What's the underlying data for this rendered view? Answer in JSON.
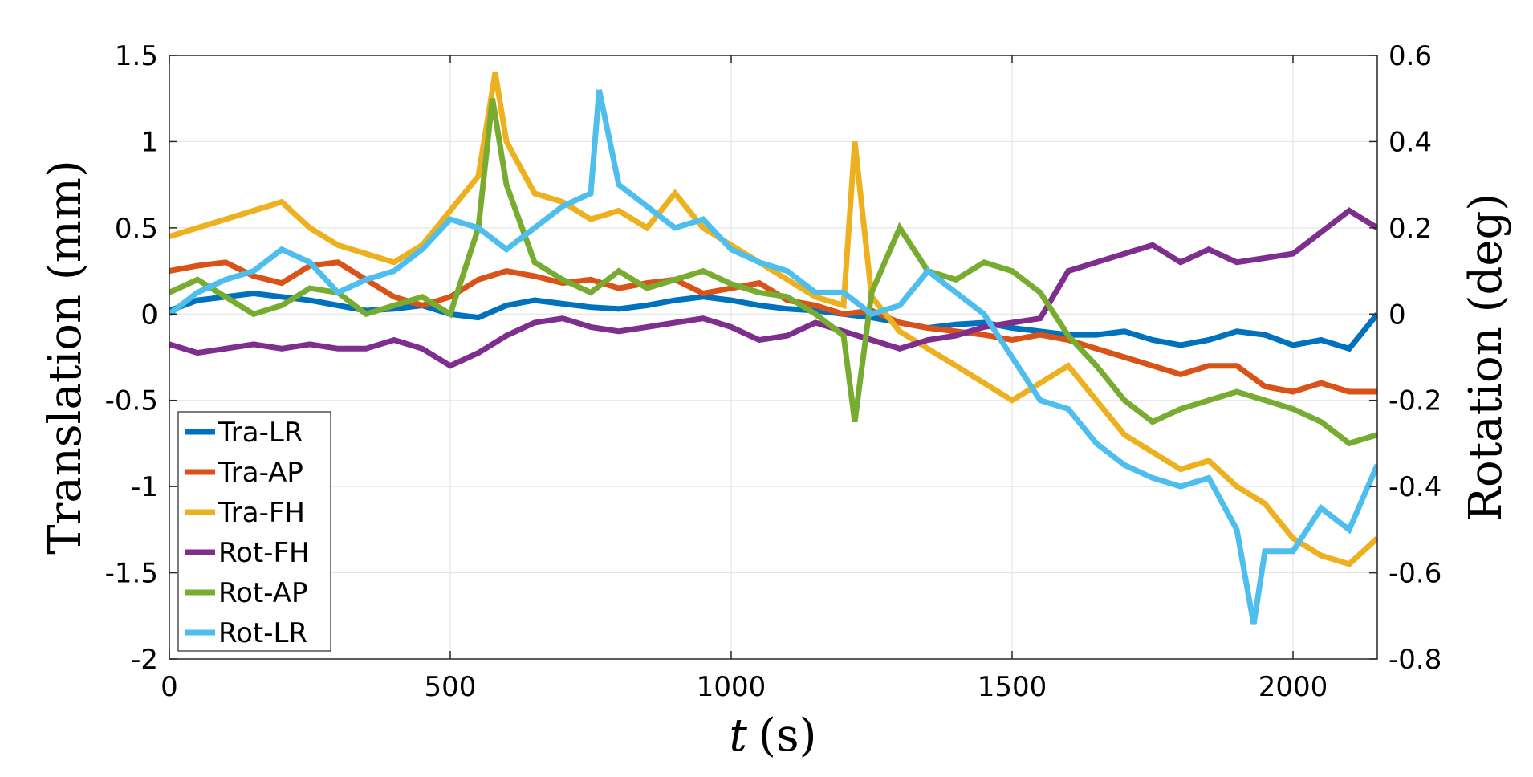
{
  "chart_data": {
    "type": "line",
    "title": "",
    "xlabel_var": "t",
    "xlabel_unit": "(s)",
    "ylabel_left": "Translation (mm)",
    "ylabel_right": "Rotation (deg)",
    "xlim": [
      0,
      2150
    ],
    "ylim_left": [
      -2,
      1.5
    ],
    "ylim_right": [
      -0.8,
      0.6
    ],
    "xticks": [
      0,
      500,
      1000,
      1500,
      2000
    ],
    "xtick_labels": [
      "0",
      "500",
      "1000",
      "1500",
      "2000"
    ],
    "yticks_left": [
      -2,
      -1.5,
      -1,
      -0.5,
      0,
      0.5,
      1,
      1.5
    ],
    "ytick_labels_left": [
      "-2",
      "-1.5",
      "-1",
      "-0.5",
      "0",
      "0.5",
      "1",
      "1.5"
    ],
    "yticks_right": [
      -0.8,
      -0.6,
      -0.4,
      -0.2,
      0,
      0.2,
      0.4,
      0.6
    ],
    "ytick_labels_right": [
      "-0.8",
      "-0.6",
      "-0.4",
      "-0.2",
      "0",
      "0.2",
      "0.4",
      "0.6"
    ],
    "grid": true,
    "legend_position": "bottom-left",
    "series": [
      {
        "name": "Tra-LR",
        "axis": "left",
        "color": "#0072BD",
        "x": [
          0,
          50,
          100,
          150,
          200,
          250,
          300,
          350,
          400,
          450,
          500,
          550,
          600,
          650,
          700,
          750,
          800,
          850,
          900,
          950,
          1000,
          1050,
          1100,
          1150,
          1200,
          1250,
          1300,
          1350,
          1400,
          1450,
          1500,
          1550,
          1600,
          1650,
          1700,
          1750,
          1800,
          1850,
          1900,
          1950,
          2000,
          2050,
          2100,
          2150
        ],
        "y": [
          0.02,
          0.08,
          0.1,
          0.12,
          0.1,
          0.08,
          0.05,
          0.02,
          0.03,
          0.05,
          0.0,
          -0.02,
          0.05,
          0.08,
          0.06,
          0.04,
          0.03,
          0.05,
          0.08,
          0.1,
          0.08,
          0.05,
          0.03,
          0.02,
          0.0,
          -0.02,
          -0.05,
          -0.08,
          -0.06,
          -0.05,
          -0.08,
          -0.1,
          -0.12,
          -0.12,
          -0.1,
          -0.15,
          -0.18,
          -0.15,
          -0.1,
          -0.12,
          -0.18,
          -0.15,
          -0.2,
          0.0
        ]
      },
      {
        "name": "Tra-AP",
        "axis": "left",
        "color": "#D95319",
        "x": [
          0,
          50,
          100,
          150,
          200,
          250,
          300,
          350,
          400,
          450,
          500,
          550,
          600,
          650,
          700,
          750,
          800,
          850,
          900,
          950,
          1000,
          1050,
          1100,
          1150,
          1200,
          1250,
          1300,
          1350,
          1400,
          1450,
          1500,
          1550,
          1600,
          1650,
          1700,
          1750,
          1800,
          1850,
          1900,
          1950,
          2000,
          2050,
          2100,
          2150
        ],
        "y": [
          0.25,
          0.28,
          0.3,
          0.22,
          0.18,
          0.28,
          0.3,
          0.2,
          0.1,
          0.05,
          0.1,
          0.2,
          0.25,
          0.22,
          0.18,
          0.2,
          0.15,
          0.18,
          0.2,
          0.12,
          0.15,
          0.18,
          0.08,
          0.05,
          0.0,
          0.02,
          -0.05,
          -0.08,
          -0.1,
          -0.12,
          -0.15,
          -0.12,
          -0.15,
          -0.2,
          -0.25,
          -0.3,
          -0.35,
          -0.3,
          -0.3,
          -0.42,
          -0.45,
          -0.4,
          -0.45,
          -0.45
        ]
      },
      {
        "name": "Tra-FH",
        "axis": "left",
        "color": "#EDB120",
        "x": [
          0,
          50,
          100,
          150,
          200,
          250,
          300,
          350,
          400,
          450,
          500,
          550,
          580,
          600,
          650,
          700,
          750,
          800,
          850,
          900,
          950,
          1000,
          1050,
          1100,
          1150,
          1200,
          1220,
          1250,
          1300,
          1350,
          1400,
          1450,
          1500,
          1550,
          1600,
          1650,
          1700,
          1750,
          1800,
          1850,
          1900,
          1950,
          2000,
          2050,
          2100,
          2150
        ],
        "y": [
          0.45,
          0.5,
          0.55,
          0.6,
          0.65,
          0.5,
          0.4,
          0.35,
          0.3,
          0.4,
          0.6,
          0.8,
          1.4,
          1.0,
          0.7,
          0.65,
          0.55,
          0.6,
          0.5,
          0.7,
          0.5,
          0.4,
          0.3,
          0.2,
          0.1,
          0.05,
          1.0,
          0.1,
          -0.1,
          -0.2,
          -0.3,
          -0.4,
          -0.5,
          -0.4,
          -0.3,
          -0.5,
          -0.7,
          -0.8,
          -0.9,
          -0.85,
          -1.0,
          -1.1,
          -1.3,
          -1.4,
          -1.45,
          -1.3
        ]
      },
      {
        "name": "Rot-FH",
        "axis": "right",
        "color": "#7E2F8E",
        "x": [
          0,
          50,
          100,
          150,
          200,
          250,
          300,
          350,
          400,
          450,
          500,
          550,
          600,
          650,
          700,
          750,
          800,
          850,
          900,
          950,
          1000,
          1050,
          1100,
          1150,
          1200,
          1250,
          1300,
          1350,
          1400,
          1450,
          1500,
          1550,
          1600,
          1650,
          1700,
          1750,
          1800,
          1850,
          1900,
          1950,
          2000,
          2050,
          2100,
          2150
        ],
        "y": [
          -0.07,
          -0.09,
          -0.08,
          -0.07,
          -0.08,
          -0.07,
          -0.08,
          -0.08,
          -0.06,
          -0.08,
          -0.12,
          -0.09,
          -0.05,
          -0.02,
          -0.01,
          -0.03,
          -0.04,
          -0.03,
          -0.02,
          -0.01,
          -0.03,
          -0.06,
          -0.05,
          -0.02,
          -0.04,
          -0.06,
          -0.08,
          -0.06,
          -0.05,
          -0.03,
          -0.02,
          -0.01,
          0.1,
          0.12,
          0.14,
          0.16,
          0.12,
          0.15,
          0.12,
          0.13,
          0.14,
          0.19,
          0.24,
          0.2
        ]
      },
      {
        "name": "Rot-AP",
        "axis": "right",
        "color": "#77AC30",
        "x": [
          0,
          50,
          100,
          150,
          200,
          250,
          300,
          350,
          400,
          450,
          500,
          550,
          575,
          600,
          650,
          700,
          750,
          800,
          850,
          900,
          950,
          1000,
          1050,
          1100,
          1150,
          1200,
          1220,
          1250,
          1300,
          1350,
          1400,
          1450,
          1500,
          1550,
          1600,
          1650,
          1700,
          1750,
          1800,
          1850,
          1900,
          1950,
          2000,
          2050,
          2100,
          2150
        ],
        "y": [
          0.05,
          0.08,
          0.04,
          0.0,
          0.02,
          0.06,
          0.05,
          0.0,
          0.02,
          0.04,
          0.0,
          0.2,
          0.5,
          0.3,
          0.12,
          0.08,
          0.05,
          0.1,
          0.06,
          0.08,
          0.1,
          0.07,
          0.05,
          0.04,
          0.0,
          -0.05,
          -0.25,
          0.05,
          0.2,
          0.1,
          0.08,
          0.12,
          0.1,
          0.05,
          -0.05,
          -0.12,
          -0.2,
          -0.25,
          -0.22,
          -0.2,
          -0.18,
          -0.2,
          -0.22,
          -0.25,
          -0.3,
          -0.28
        ]
      },
      {
        "name": "Rot-LR",
        "axis": "right",
        "color": "#4DBEEE",
        "x": [
          0,
          50,
          100,
          150,
          200,
          250,
          300,
          350,
          400,
          450,
          500,
          550,
          600,
          650,
          700,
          750,
          765,
          800,
          850,
          900,
          950,
          1000,
          1050,
          1100,
          1150,
          1200,
          1250,
          1300,
          1350,
          1400,
          1450,
          1500,
          1550,
          1600,
          1650,
          1700,
          1750,
          1800,
          1850,
          1900,
          1930,
          1950,
          2000,
          2050,
          2100,
          2150
        ],
        "y": [
          0.0,
          0.05,
          0.08,
          0.1,
          0.15,
          0.12,
          0.05,
          0.08,
          0.1,
          0.15,
          0.22,
          0.2,
          0.15,
          0.2,
          0.25,
          0.28,
          0.52,
          0.3,
          0.25,
          0.2,
          0.22,
          0.15,
          0.12,
          0.1,
          0.05,
          0.05,
          0.0,
          0.02,
          0.1,
          0.05,
          0.0,
          -0.1,
          -0.2,
          -0.22,
          -0.3,
          -0.35,
          -0.38,
          -0.4,
          -0.38,
          -0.5,
          -0.72,
          -0.55,
          -0.55,
          -0.45,
          -0.5,
          -0.35
        ]
      }
    ]
  }
}
